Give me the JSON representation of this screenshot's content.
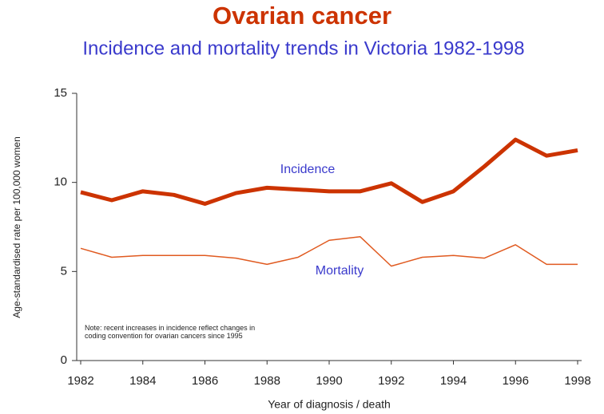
{
  "chart_data": {
    "type": "line",
    "title": "Ovarian cancer",
    "subtitle": "Incidence and mortality trends in Victoria 1982-1998",
    "x_label": "Year of diagnosis / death",
    "y_label": "Age-standardised rate per 100,000 women",
    "annotation": "Note: recent increases in incidence reflect changes in coding convention for ovarian cancers since 1995",
    "x": [
      1982,
      1983,
      1984,
      1985,
      1986,
      1987,
      1988,
      1989,
      1990,
      1991,
      1992,
      1993,
      1994,
      1995,
      1996,
      1997,
      1998
    ],
    "series": [
      {
        "name": "Incidence",
        "color": "#cc3300",
        "values": [
          9.45,
          9.0,
          9.5,
          9.3,
          8.8,
          9.4,
          9.7,
          9.6,
          9.5,
          9.5,
          9.95,
          8.9,
          9.5,
          10.9,
          12.4,
          11.5,
          11.8
        ]
      },
      {
        "name": "Mortality",
        "color": "#e05a20",
        "values": [
          6.3,
          5.8,
          5.9,
          5.9,
          5.9,
          5.75,
          5.4,
          5.8,
          6.75,
          6.95,
          5.3,
          5.8,
          5.9,
          5.75,
          6.5,
          5.4,
          5.4
        ]
      }
    ],
    "xlim": [
      1982,
      1998
    ],
    "xticks": [
      1982,
      1984,
      1986,
      1988,
      1990,
      1992,
      1994,
      1996,
      1998
    ],
    "ylim": [
      0,
      15
    ],
    "yticks": [
      0,
      5,
      10,
      15
    ],
    "grid": false
  }
}
